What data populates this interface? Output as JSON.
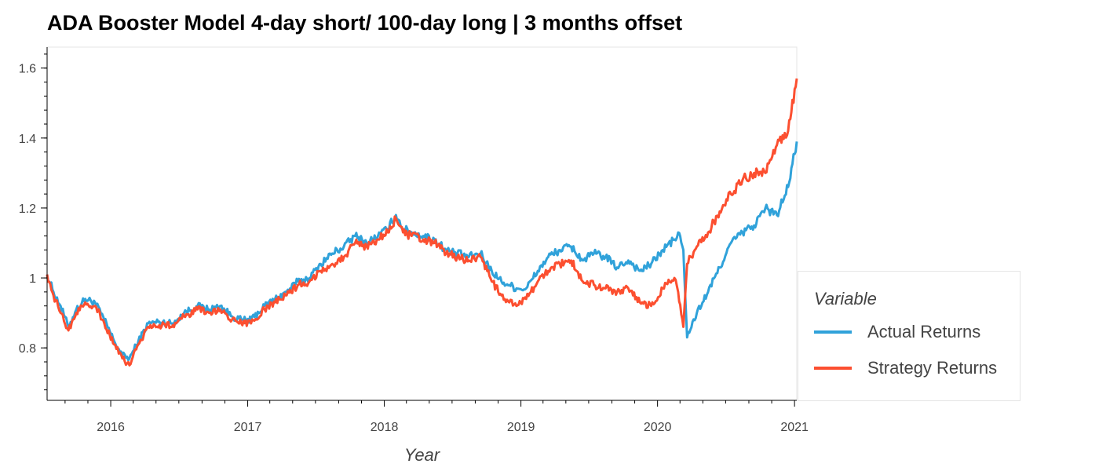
{
  "chart_data": {
    "type": "line",
    "title": "ADA Booster Model 4-day short/ 100-day long | 3 months offset",
    "xlabel": "Year",
    "ylabel": "",
    "xlim": [
      "2015-07-15",
      "2021-01-07"
    ],
    "ylim": [
      0.65,
      1.66
    ],
    "xticks": [
      "2016",
      "2017",
      "2018",
      "2019",
      "2020",
      "2021"
    ],
    "yticks": [
      "0.8",
      "1",
      "1.2",
      "1.4",
      "1.6"
    ],
    "grid": false,
    "legend": {
      "title": "Variable",
      "position": "right"
    },
    "series": [
      {
        "name": "Actual Returns",
        "color": "#30a2da",
        "x": [
          "2015-07-15",
          "2015-08-01",
          "2015-08-20",
          "2015-09-10",
          "2015-10-01",
          "2015-10-25",
          "2015-11-20",
          "2015-12-15",
          "2016-01-10",
          "2016-02-01",
          "2016-02-20",
          "2016-03-15",
          "2016-04-10",
          "2016-05-10",
          "2016-06-15",
          "2016-07-15",
          "2016-08-20",
          "2016-09-20",
          "2016-10-20",
          "2016-11-20",
          "2016-12-15",
          "2017-01-10",
          "2017-02-15",
          "2017-03-15",
          "2017-04-15",
          "2017-05-15",
          "2017-06-15",
          "2017-07-15",
          "2017-08-15",
          "2017-09-15",
          "2017-10-15",
          "2017-11-15",
          "2017-12-15",
          "2018-01-10",
          "2018-02-01",
          "2018-02-20",
          "2018-03-15",
          "2018-04-15",
          "2018-05-15",
          "2018-06-15",
          "2018-07-15",
          "2018-08-15",
          "2018-09-15",
          "2018-10-15",
          "2018-11-10",
          "2018-12-01",
          "2018-12-20",
          "2019-01-15",
          "2019-02-15",
          "2019-03-15",
          "2019-04-15",
          "2019-05-15",
          "2019-06-15",
          "2019-07-15",
          "2019-08-15",
          "2019-09-15",
          "2019-10-15",
          "2019-11-15",
          "2019-12-15",
          "2020-01-15",
          "2020-02-15",
          "2020-02-25",
          "2020-03-10",
          "2020-03-20",
          "2020-04-15",
          "2020-05-15",
          "2020-06-15",
          "2020-07-15",
          "2020-08-15",
          "2020-09-15",
          "2020-10-15",
          "2020-11-15",
          "2020-12-15",
          "2021-01-07"
        ],
        "values": [
          1.01,
          0.96,
          0.92,
          0.86,
          0.91,
          0.94,
          0.93,
          0.88,
          0.82,
          0.78,
          0.77,
          0.82,
          0.87,
          0.875,
          0.87,
          0.9,
          0.92,
          0.91,
          0.92,
          0.89,
          0.88,
          0.88,
          0.92,
          0.94,
          0.96,
          0.99,
          1.0,
          1.04,
          1.07,
          1.09,
          1.12,
          1.1,
          1.12,
          1.14,
          1.18,
          1.14,
          1.13,
          1.12,
          1.11,
          1.08,
          1.07,
          1.06,
          1.07,
          1.02,
          0.99,
          0.98,
          0.97,
          0.97,
          1.02,
          1.06,
          1.08,
          1.09,
          1.05,
          1.07,
          1.06,
          1.03,
          1.05,
          1.02,
          1.04,
          1.08,
          1.11,
          1.13,
          1.08,
          0.83,
          0.9,
          0.96,
          1.03,
          1.1,
          1.13,
          1.15,
          1.2,
          1.18,
          1.26,
          1.39
        ]
      },
      {
        "name": "Strategy Returns",
        "color": "#fc4f30",
        "x": [
          "2015-07-15",
          "2015-08-01",
          "2015-08-20",
          "2015-09-10",
          "2015-10-01",
          "2015-10-25",
          "2015-11-20",
          "2015-12-15",
          "2016-01-10",
          "2016-02-01",
          "2016-02-20",
          "2016-03-15",
          "2016-04-10",
          "2016-05-10",
          "2016-06-15",
          "2016-07-15",
          "2016-08-20",
          "2016-09-20",
          "2016-10-20",
          "2016-11-20",
          "2016-12-15",
          "2017-01-10",
          "2017-02-15",
          "2017-03-15",
          "2017-04-15",
          "2017-05-15",
          "2017-06-15",
          "2017-07-15",
          "2017-08-15",
          "2017-09-15",
          "2017-10-15",
          "2017-11-15",
          "2017-12-15",
          "2018-01-10",
          "2018-02-01",
          "2018-02-20",
          "2018-03-15",
          "2018-04-15",
          "2018-05-15",
          "2018-06-15",
          "2018-07-15",
          "2018-08-15",
          "2018-09-15",
          "2018-10-15",
          "2018-11-10",
          "2018-12-01",
          "2018-12-20",
          "2019-01-15",
          "2019-02-15",
          "2019-03-15",
          "2019-04-15",
          "2019-05-15",
          "2019-06-15",
          "2019-07-15",
          "2019-08-15",
          "2019-09-15",
          "2019-10-15",
          "2019-11-15",
          "2019-12-15",
          "2020-01-15",
          "2020-02-15",
          "2020-02-25",
          "2020-03-10",
          "2020-03-20",
          "2020-04-15",
          "2020-05-15",
          "2020-06-15",
          "2020-07-15",
          "2020-08-15",
          "2020-09-15",
          "2020-10-15",
          "2020-11-15",
          "2020-12-15",
          "2021-01-07"
        ],
        "values": [
          1.01,
          0.95,
          0.9,
          0.85,
          0.9,
          0.93,
          0.92,
          0.87,
          0.81,
          0.77,
          0.75,
          0.81,
          0.86,
          0.865,
          0.865,
          0.89,
          0.91,
          0.9,
          0.91,
          0.88,
          0.87,
          0.87,
          0.91,
          0.93,
          0.95,
          0.98,
          0.99,
          1.02,
          1.04,
          1.06,
          1.1,
          1.09,
          1.11,
          1.13,
          1.17,
          1.13,
          1.12,
          1.11,
          1.1,
          1.07,
          1.06,
          1.05,
          1.06,
          0.99,
          0.95,
          0.93,
          0.92,
          0.94,
          0.99,
          1.02,
          1.04,
          1.05,
          0.99,
          0.98,
          0.97,
          0.96,
          0.97,
          0.93,
          0.92,
          0.97,
          1.0,
          0.96,
          0.86,
          1.04,
          1.09,
          1.13,
          1.19,
          1.24,
          1.28,
          1.3,
          1.3,
          1.38,
          1.42,
          1.57
        ]
      }
    ]
  }
}
